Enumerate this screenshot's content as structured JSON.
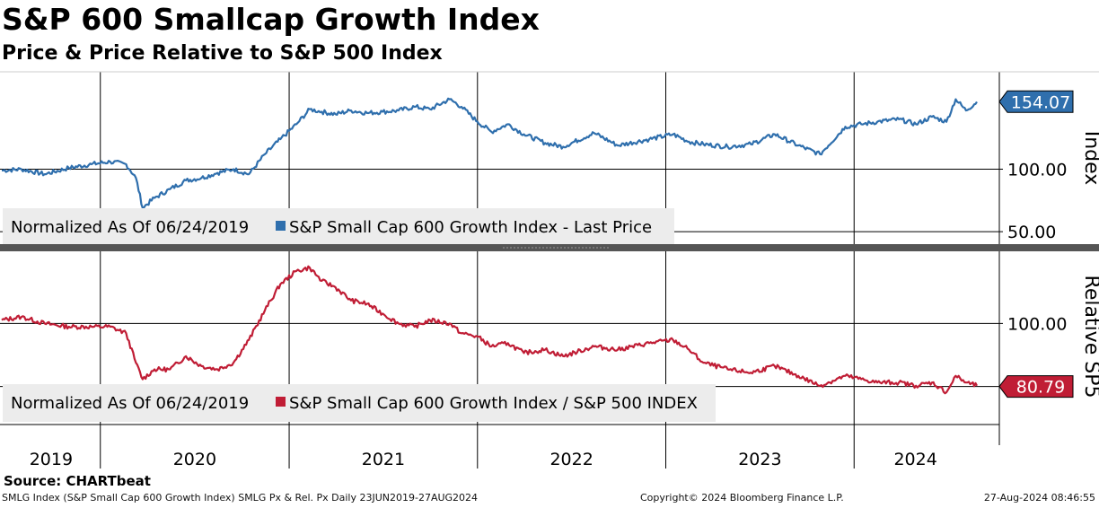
{
  "title": "S&P 600 Smallcap Growth Index",
  "subtitle": "Price & Price Relative to S&P 500 Index",
  "source": "Source: CHARTbeat",
  "footer": {
    "left": "SMLG Index (S&P Small Cap 600 Growth Index) SMLG Px & Rel. Px  Daily 23JUN2019-27AUG2024",
    "middle": "Copyright© 2024 Bloomberg Finance L.P.",
    "right": "27-Aug-2024 08:46:55"
  },
  "colors": {
    "price": "#2f6fad",
    "relative": "#c01d35",
    "grid": "#000000",
    "legend_bg": "#ececec"
  },
  "chart_data": [
    {
      "type": "line",
      "panel": "price",
      "ylabel": "Index",
      "ylim": [
        40,
        178
      ],
      "yticks": [
        50,
        100
      ],
      "ytick_labels": [
        "50.00",
        "100.00"
      ],
      "last_value": 154.07,
      "last_value_label": "154.07",
      "legend": {
        "note": "Normalized As Of 06/24/2019",
        "placement": "bottom-left"
      },
      "series": [
        {
          "name": "S&P Small Cap 600 Growth Index - Last Price",
          "color": "#2f6fad",
          "x": [
            "2019-06-24",
            "2019-08-01",
            "2019-09-15",
            "2019-11-01",
            "2019-12-15",
            "2020-01-20",
            "2020-02-20",
            "2020-03-10",
            "2020-03-23",
            "2020-04-15",
            "2020-05-15",
            "2020-06-15",
            "2020-07-15",
            "2020-08-15",
            "2020-09-15",
            "2020-10-15",
            "2020-11-15",
            "2020-12-15",
            "2021-01-15",
            "2021-02-10",
            "2021-03-05",
            "2021-04-01",
            "2021-05-01",
            "2021-06-01",
            "2021-07-01",
            "2021-08-01",
            "2021-09-01",
            "2021-10-01",
            "2021-11-08",
            "2021-12-01",
            "2022-01-01",
            "2022-01-28",
            "2022-03-01",
            "2022-04-01",
            "2022-05-12",
            "2022-06-16",
            "2022-08-15",
            "2022-09-30",
            "2022-11-30",
            "2023-01-15",
            "2023-02-15",
            "2023-03-15",
            "2023-05-01",
            "2023-06-15",
            "2023-07-31",
            "2023-09-15",
            "2023-10-27",
            "2023-12-15",
            "2024-01-15",
            "2024-02-15",
            "2024-03-28",
            "2024-04-30",
            "2024-05-31",
            "2024-06-28",
            "2024-07-16",
            "2024-08-05",
            "2024-08-26"
          ],
          "values": [
            99,
            100,
            96,
            101,
            104,
            106,
            104,
            93,
            69,
            77,
            84,
            91,
            93,
            97,
            100,
            96,
            112,
            124,
            136,
            148,
            146,
            144,
            147,
            145,
            146,
            147,
            150,
            148,
            156,
            150,
            138,
            130,
            136,
            128,
            121,
            118,
            129,
            119,
            124,
            128,
            122,
            120,
            118,
            120,
            128,
            119,
            112,
            134,
            136,
            138,
            140,
            136,
            142,
            138,
            156,
            147,
            154
          ]
        }
      ]
    },
    {
      "type": "line",
      "panel": "relative",
      "ylabel": "Relative SP5",
      "ylim": [
        70,
        122
      ],
      "yticks": [
        100
      ],
      "ytick_labels": [
        "100.00"
      ],
      "ref_line": 80.79,
      "last_value": 80.79,
      "last_value_label": "80.79",
      "legend": {
        "note": "Normalized As Of 06/24/2019",
        "placement": "bottom-left"
      },
      "series": [
        {
          "name": "S&P Small Cap 600 Growth Index / S&P 500 INDEX",
          "color": "#c01d35",
          "x": [
            "2019-06-24",
            "2019-08-01",
            "2019-09-15",
            "2019-11-01",
            "2019-12-15",
            "2020-01-20",
            "2020-02-20",
            "2020-03-10",
            "2020-03-23",
            "2020-04-15",
            "2020-05-15",
            "2020-06-15",
            "2020-07-15",
            "2020-08-15",
            "2020-09-15",
            "2020-10-15",
            "2020-11-15",
            "2020-12-15",
            "2021-01-15",
            "2021-02-10",
            "2021-03-05",
            "2021-04-01",
            "2021-05-01",
            "2021-06-01",
            "2021-07-01",
            "2021-08-01",
            "2021-09-01",
            "2021-10-01",
            "2021-11-08",
            "2021-12-01",
            "2022-01-01",
            "2022-01-28",
            "2022-03-01",
            "2022-04-01",
            "2022-05-12",
            "2022-06-16",
            "2022-08-15",
            "2022-09-30",
            "2022-11-30",
            "2023-01-15",
            "2023-02-15",
            "2023-03-15",
            "2023-05-01",
            "2023-06-15",
            "2023-07-31",
            "2023-09-15",
            "2023-10-27",
            "2023-12-15",
            "2024-01-15",
            "2024-02-15",
            "2024-03-28",
            "2024-04-30",
            "2024-05-31",
            "2024-06-28",
            "2024-07-16",
            "2024-08-05",
            "2024-08-26"
          ],
          "values": [
            101,
            102,
            100,
            99,
            99,
            99,
            97,
            88,
            83,
            86,
            86,
            90,
            87,
            86,
            88,
            95,
            104,
            112,
            116,
            117,
            113,
            111,
            107,
            106,
            103,
            100,
            99,
            101,
            100,
            97,
            96,
            93,
            94,
            91,
            92,
            90,
            93,
            92,
            94,
            95,
            92,
            88,
            86,
            85,
            87,
            84,
            81,
            84,
            83,
            82,
            82,
            81,
            82,
            79,
            84,
            82,
            81
          ]
        }
      ]
    }
  ],
  "x_axis": {
    "years": [
      "2019",
      "2020",
      "2021",
      "2022",
      "2023",
      "2024"
    ],
    "start": "2019-06-24",
    "end": "2024-08-26"
  }
}
